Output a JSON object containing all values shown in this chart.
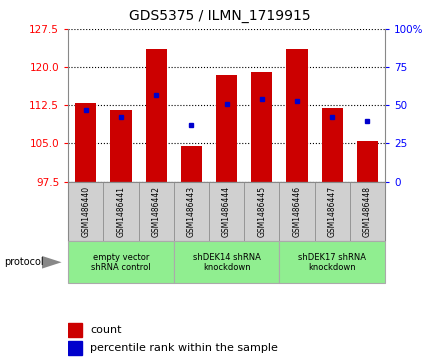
{
  "title": "GDS5375 / ILMN_1719915",
  "samples": [
    "GSM1486440",
    "GSM1486441",
    "GSM1486442",
    "GSM1486443",
    "GSM1486444",
    "GSM1486445",
    "GSM1486446",
    "GSM1486447",
    "GSM1486448"
  ],
  "counts": [
    113.0,
    111.5,
    123.5,
    104.5,
    118.5,
    119.0,
    123.5,
    112.0,
    105.5
  ],
  "percentile_ranks": [
    47,
    42,
    57,
    37,
    51,
    54,
    53,
    42,
    40
  ],
  "ylim_left": [
    97.5,
    127.5
  ],
  "ylim_right": [
    0,
    100
  ],
  "yticks_left": [
    97.5,
    105,
    112.5,
    120,
    127.5
  ],
  "yticks_right": [
    0,
    25,
    50,
    75,
    100
  ],
  "bar_color": "#cc0000",
  "dot_color": "#0000cc",
  "bar_width": 0.6,
  "groups": [
    {
      "label": "empty vector\nshRNA control",
      "start": 0,
      "end": 3
    },
    {
      "label": "shDEK14 shRNA\nknockdown",
      "start": 3,
      "end": 6
    },
    {
      "label": "shDEK17 shRNA\nknockdown",
      "start": 6,
      "end": 9
    }
  ],
  "protocol_label": "protocol",
  "legend_count_label": "count",
  "legend_percentile_label": "percentile rank within the sample",
  "sample_box_color": "#d0d0d0",
  "group_box_color": "#90ee90",
  "group_box_edge_color": "#aaaaaa"
}
